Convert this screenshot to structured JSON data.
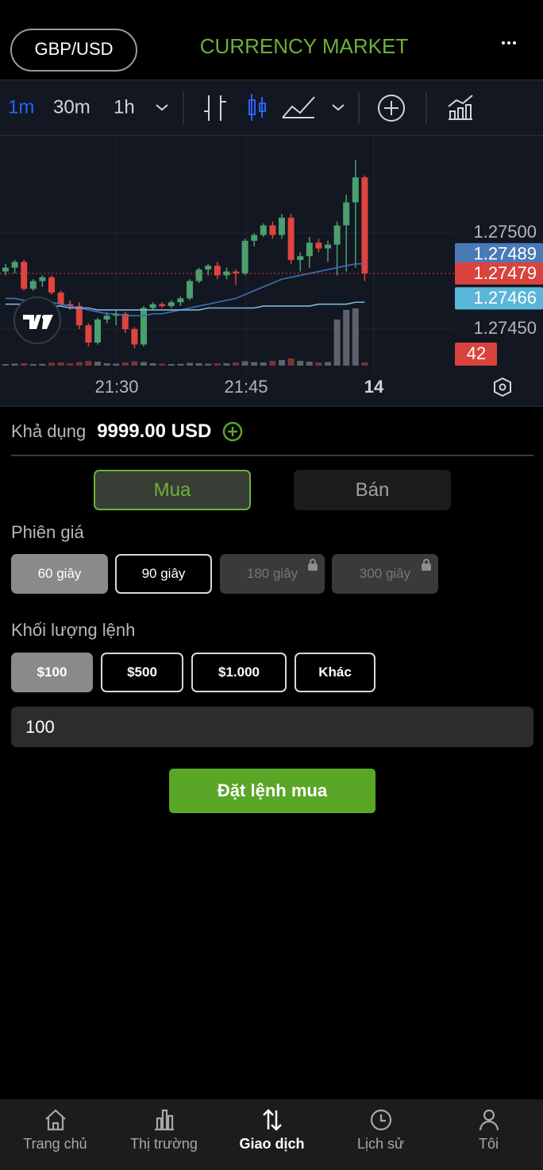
{
  "header": {
    "pair": "GBP/USD",
    "title": "CURRENCY MARKET"
  },
  "toolbar": {
    "intervals": [
      "1m",
      "30m",
      "1h"
    ]
  },
  "chart_data": {
    "type": "candlestick",
    "candles": [
      [
        1.2748,
        1.27484,
        1.27478,
        1.27482
      ],
      [
        1.27482,
        1.27486,
        1.27479,
        1.27485
      ],
      [
        1.27485,
        1.27486,
        1.2747,
        1.27471
      ],
      [
        1.27471,
        1.27476,
        1.2747,
        1.27475
      ],
      [
        1.27475,
        1.27478,
        1.27472,
        1.27477
      ],
      [
        1.27477,
        1.27478,
        1.27468,
        1.27469
      ],
      [
        1.27469,
        1.2747,
        1.27462,
        1.27463
      ],
      [
        1.27463,
        1.27465,
        1.2746,
        1.27462
      ],
      [
        1.27462,
        1.27464,
        1.2745,
        1.27452
      ],
      [
        1.27452,
        1.27453,
        1.27441,
        1.27443
      ],
      [
        1.27443,
        1.27456,
        1.27442,
        1.27455
      ],
      [
        1.27455,
        1.27459,
        1.27453,
        1.27457
      ],
      [
        1.27457,
        1.2746,
        1.27452,
        1.27458
      ],
      [
        1.27458,
        1.27459,
        1.27448,
        1.2745
      ],
      [
        1.2745,
        1.27451,
        1.2744,
        1.27442
      ],
      [
        1.27442,
        1.27462,
        1.27441,
        1.27461
      ],
      [
        1.27461,
        1.27464,
        1.2746,
        1.27463
      ],
      [
        1.27463,
        1.27464,
        1.27461,
        1.27462
      ],
      [
        1.27462,
        1.27465,
        1.27461,
        1.27464
      ],
      [
        1.27464,
        1.27467,
        1.27462,
        1.27466
      ],
      [
        1.27466,
        1.27476,
        1.27465,
        1.27475
      ],
      [
        1.27475,
        1.27482,
        1.27474,
        1.27481
      ],
      [
        1.27481,
        1.27484,
        1.27478,
        1.27483
      ],
      [
        1.27483,
        1.27485,
        1.27476,
        1.27478
      ],
      [
        1.27478,
        1.27482,
        1.27476,
        1.2748
      ],
      [
        1.2748,
        1.27481,
        1.27473,
        1.27479
      ],
      [
        1.27479,
        1.27497,
        1.27478,
        1.27496
      ],
      [
        1.27496,
        1.275,
        1.27493,
        1.27499
      ],
      [
        1.27499,
        1.27505,
        1.27498,
        1.27504
      ],
      [
        1.27504,
        1.27506,
        1.27497,
        1.27499
      ],
      [
        1.27499,
        1.2751,
        1.27497,
        1.27508
      ],
      [
        1.27508,
        1.2751,
        1.27484,
        1.27486
      ],
      [
        1.27486,
        1.2749,
        1.2748,
        1.27488
      ],
      [
        1.27488,
        1.27498,
        1.27482,
        1.27495
      ],
      [
        1.27495,
        1.27497,
        1.2749,
        1.27492
      ],
      [
        1.27492,
        1.27496,
        1.27485,
        1.27494
      ],
      [
        1.27494,
        1.27506,
        1.27478,
        1.27504
      ],
      [
        1.27504,
        1.2752,
        1.2748,
        1.27516
      ],
      [
        1.27516,
        1.27538,
        1.27482,
        1.27529
      ],
      [
        1.27529,
        1.2753,
        1.27475,
        1.27479
      ]
    ],
    "volumes": [
      20,
      25,
      30,
      20,
      22,
      35,
      40,
      30,
      45,
      60,
      50,
      30,
      25,
      40,
      55,
      45,
      30,
      25,
      20,
      22,
      35,
      30,
      25,
      28,
      30,
      40,
      55,
      45,
      40,
      60,
      70,
      90,
      60,
      50,
      40,
      45,
      580,
      700,
      720,
      42
    ],
    "vlim": [
      0,
      800
    ],
    "up_color": "#4a9f6e",
    "down_color": "#e0443f",
    "ma": [
      {
        "color": "#3d70b8",
        "values": [
          1.27466,
          1.27466,
          1.27465,
          1.27465,
          1.27464,
          1.27464,
          1.27463,
          1.27462,
          1.27461,
          1.2746,
          1.27459,
          1.27458,
          1.27458,
          1.27457,
          1.27457,
          1.27457,
          1.27458,
          1.27458,
          1.27459,
          1.2746,
          1.27461,
          1.27462,
          1.27463,
          1.27464,
          1.27465,
          1.27466,
          1.27468,
          1.2747,
          1.27472,
          1.27474,
          1.27476,
          1.27477,
          1.27478,
          1.27479,
          1.2748,
          1.27481,
          1.27482,
          1.27483,
          1.27484,
          1.27484
        ]
      },
      {
        "color": "#7fb6d8",
        "values": [
          1.27463,
          1.27463,
          1.27463,
          1.27462,
          1.27462,
          1.27462,
          1.27462,
          1.27461,
          1.27461,
          1.27461,
          1.2746,
          1.2746,
          1.2746,
          1.2746,
          1.2746,
          1.2746,
          1.2746,
          1.2746,
          1.2746,
          1.2746,
          1.2746,
          1.2746,
          1.27461,
          1.27461,
          1.27461,
          1.27461,
          1.27461,
          1.27461,
          1.27462,
          1.27462,
          1.27462,
          1.27462,
          1.27462,
          1.27462,
          1.27463,
          1.27463,
          1.27463,
          1.27463,
          1.27464,
          1.27464
        ]
      }
    ],
    "ylim": [
      1.27431,
      1.27551
    ],
    "yticks": [
      {
        "value": 1.275,
        "label": "1.27500"
      },
      {
        "value": 1.2745,
        "label": "1.27450"
      }
    ],
    "badges": [
      {
        "value": 1.27489,
        "color": "#4a7ab5"
      },
      {
        "value": 1.27479,
        "color": "#d8433e"
      },
      {
        "value": 1.27466,
        "color": "#5ab6d8"
      }
    ],
    "volume_badge": {
      "value": 42,
      "color": "#d8433e"
    },
    "time_labels": [
      "21:30",
      "21:45",
      "14"
    ]
  },
  "balance": {
    "label": "Khả dụng",
    "amount": "9999.00 USD"
  },
  "side_tabs": [
    "Mua",
    "Bán"
  ],
  "session": {
    "label": "Phiên giá",
    "options": [
      "60 giây",
      "90 giây",
      "180 giây",
      "300 giây"
    ]
  },
  "volume": {
    "label": "Khối lượng lệnh",
    "options": [
      "$100",
      "$500",
      "$1.000",
      "Khác"
    ],
    "input": "100"
  },
  "submit": "Đặt lệnh mua",
  "nav": [
    "Trang chủ",
    "Thị trường",
    "Giao dịch",
    "Lịch sử",
    "Tôi"
  ]
}
